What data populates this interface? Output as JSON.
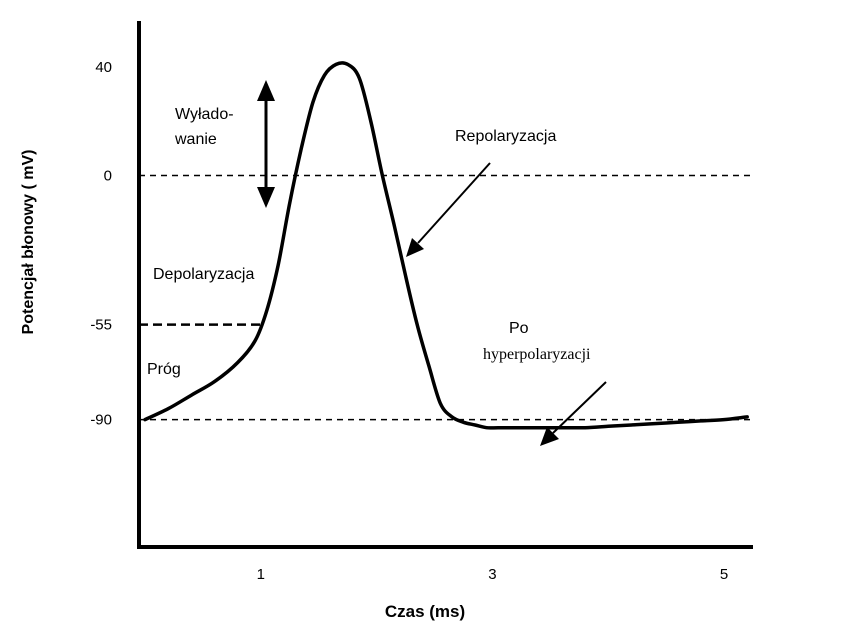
{
  "chart_data": {
    "type": "line",
    "title": "",
    "xlabel": "Czas (ms)",
    "ylabel": "Potencjał błonowy ( mV)",
    "x_ticks": [
      "1",
      "3",
      "5"
    ],
    "y_ticks": [
      "40",
      "0",
      "-55",
      "-90"
    ],
    "reference_lines": [
      {
        "name": "0",
        "y": 0
      },
      {
        "name": "-55",
        "y": -55
      },
      {
        "name": "-90",
        "y": -90
      }
    ],
    "series": [
      {
        "x": [
          0,
          0.2,
          0.4,
          0.6,
          0.8,
          0.95,
          1.05,
          1.15,
          1.25,
          1.35,
          1.45,
          1.55,
          1.65,
          1.75,
          1.85,
          1.95,
          2.05,
          2.15,
          2.25,
          2.35,
          2.45,
          2.55,
          2.65,
          2.75,
          2.85,
          2.95,
          3.05,
          3.2,
          3.4,
          3.6,
          3.8,
          4.0,
          4.2,
          4.4,
          4.6,
          4.8,
          5.0,
          5.2
        ],
        "y": [
          -90,
          -86,
          -81,
          -76,
          -69,
          -61,
          -50,
          -33,
          -10,
          10,
          27,
          37,
          41,
          41,
          36,
          20,
          0,
          -18,
          -37,
          -55,
          -70,
          -84,
          -89,
          -91,
          -92,
          -93,
          -93,
          -93,
          -93,
          -93,
          -93,
          -92.5,
          -92,
          -91.5,
          -91,
          -90.5,
          -90,
          -89
        ]
      }
    ],
    "annotations": {
      "discharge": [
        "Wyładowanie",
        "Wyłado-",
        "wanie"
      ],
      "depolarization": "Depolaryzacja",
      "repolarization": "Repolaryzacja",
      "threshold": "Próg",
      "after_hyper": [
        "Po",
        "hyperpolaryzacji"
      ]
    },
    "xlim": [
      0,
      5.25
    ],
    "ylim": [
      -137,
      57
    ],
    "grid": false,
    "legend": "none"
  }
}
